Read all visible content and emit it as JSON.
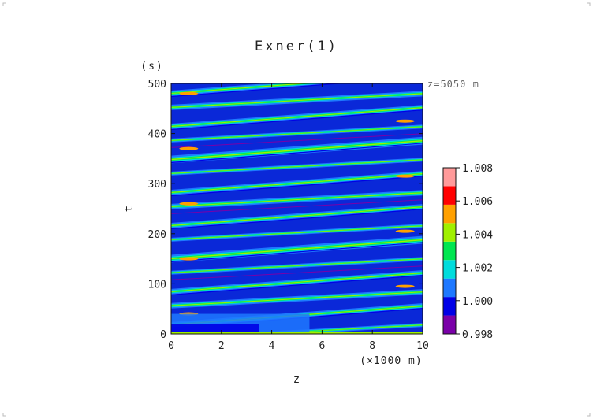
{
  "chart_data": {
    "type": "heatmap",
    "title": "Exner(1)",
    "xlabel": "z",
    "ylabel": "t",
    "x_unit": "(×1000 m)",
    "y_unit": "(s)",
    "annotation": "z=5050 m",
    "xlim": [
      0,
      10
    ],
    "ylim": [
      0,
      500
    ],
    "x_ticks": [
      "0",
      "2",
      "4",
      "6",
      "8",
      "10"
    ],
    "y_ticks": [
      "0",
      "100",
      "200",
      "300",
      "400",
      "500"
    ],
    "colorbar": {
      "min": 0.998,
      "max": 1.008,
      "tick_labels": [
        "0.998",
        "1.000",
        "1.002",
        "1.004",
        "1.006",
        "1.008"
      ],
      "levels": [
        {
          "color": "#7a00a8"
        },
        {
          "color": "#0000e6"
        },
        {
          "color": "#1e78ff"
        },
        {
          "color": "#00dcdc"
        },
        {
          "color": "#00e650"
        },
        {
          "color": "#a0f000"
        },
        {
          "color": "#ffa000"
        },
        {
          "color": "#ff0000"
        },
        {
          "color": "#ff9a9a"
        }
      ]
    }
  }
}
